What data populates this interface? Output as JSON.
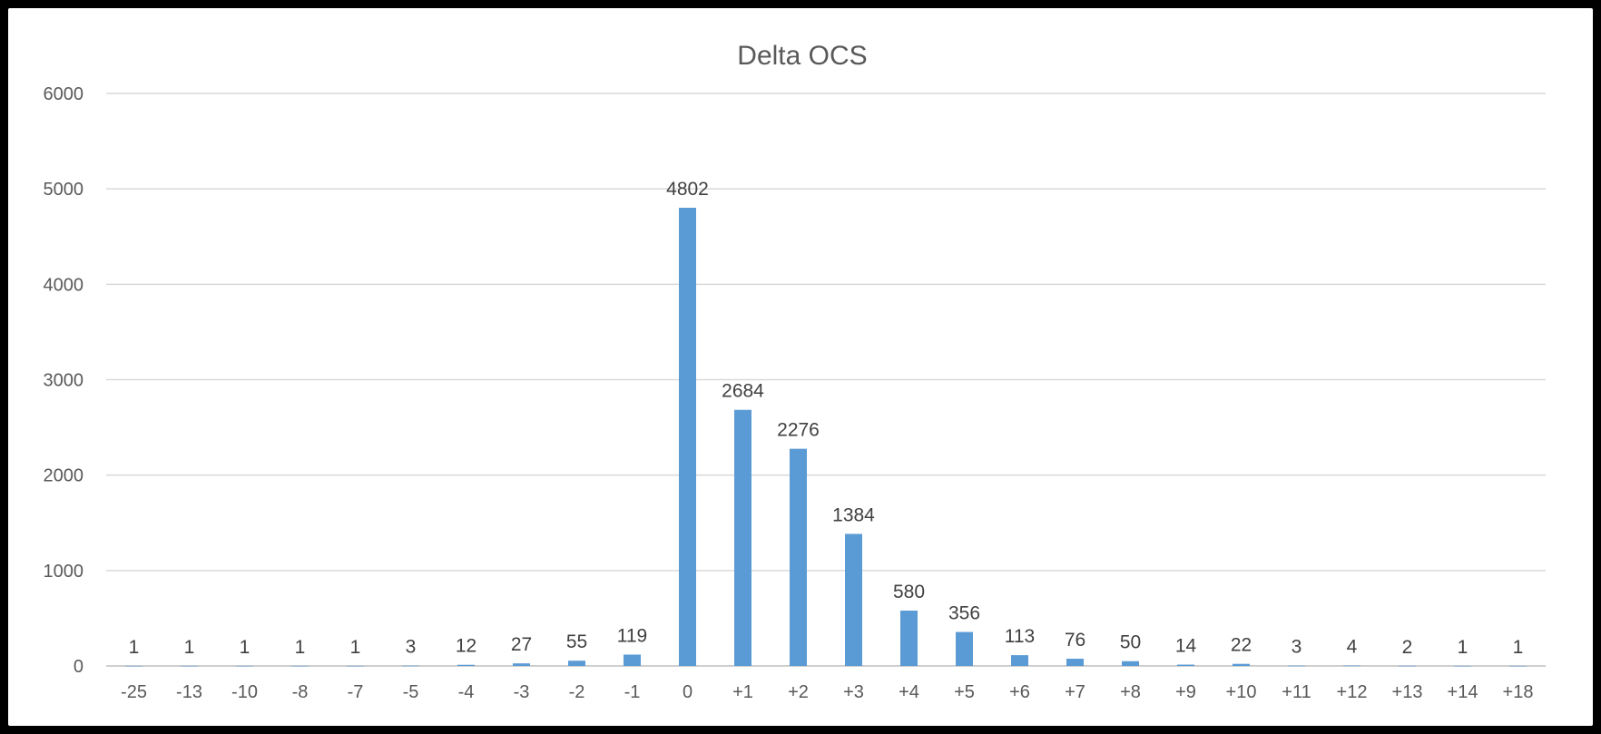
{
  "chart_data": {
    "type": "bar",
    "title": "Delta OCS",
    "xlabel": "",
    "ylabel": "",
    "ylim": [
      0,
      6000
    ],
    "yticks": [
      0,
      1000,
      2000,
      3000,
      4000,
      5000,
      6000
    ],
    "grid": true,
    "legend": "none",
    "bar_color": "#5b9bd5",
    "categories": [
      "-25",
      "-13",
      "-10",
      "-8",
      "-7",
      "-5",
      "-4",
      "-3",
      "-2",
      "-1",
      "0",
      "+1",
      "+2",
      "+3",
      "+4",
      "+5",
      "+6",
      "+7",
      "+8",
      "+9",
      "+10",
      "+11",
      "+12",
      "+13",
      "+14",
      "+18"
    ],
    "values": [
      1,
      1,
      1,
      1,
      1,
      3,
      12,
      27,
      55,
      119,
      4802,
      2684,
      2276,
      1384,
      580,
      356,
      113,
      76,
      50,
      14,
      22,
      3,
      4,
      2,
      1,
      1
    ]
  }
}
